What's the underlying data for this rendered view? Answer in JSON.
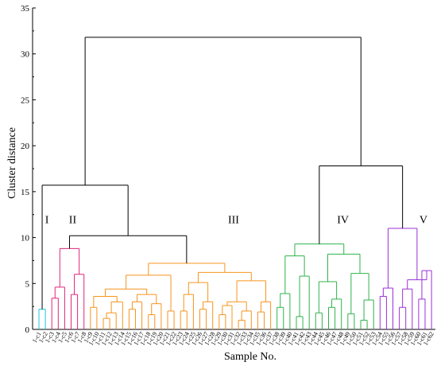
{
  "chart_data": {
    "type": "dendrogram",
    "ylabel": "Cluster distance",
    "xlabel": "Sample No.",
    "ylim": [
      0,
      35
    ],
    "yticks": [
      0,
      5,
      10,
      15,
      20,
      25,
      30,
      35
    ],
    "cluster_labels": [
      {
        "label": "I",
        "x_leaf": 0.5,
        "y": 12
      },
      {
        "label": "II",
        "x_leaf": 4.5,
        "y": 12
      },
      {
        "label": "III",
        "x_leaf": 29.5,
        "y": 12
      },
      {
        "label": "IV",
        "x_leaf": 46.5,
        "y": 12
      },
      {
        "label": "V",
        "x_leaf": 59.0,
        "y": 12
      }
    ],
    "colors": {
      "I": "#22c4e0",
      "II": "#e0257a",
      "III": "#f7941d",
      "IV": "#2db34a",
      "V": "#9b30d9",
      "root": "#000000"
    },
    "leaves": [
      "1-c1",
      "1-c2",
      "1-c3",
      "1-c4",
      "1-c5",
      "1-c6",
      "1-c7",
      "1-c8",
      "1-c9",
      "1-c10",
      "1-c11",
      "1-c12",
      "1-c13",
      "1-c14",
      "1-c15",
      "1-c16",
      "1-c17",
      "1-c18",
      "1-c19",
      "1-c20",
      "1-c21",
      "1-c22",
      "1-c23",
      "1-c24",
      "1-c25",
      "1-c26",
      "1-c27",
      "1-c28",
      "1-c29",
      "1-c30",
      "1-c31",
      "1-c32",
      "1-c33",
      "1-c34",
      "1-c35",
      "1-c36",
      "1-c37",
      "1-c38",
      "1-c39",
      "1-c40",
      "1-c41",
      "1-c42",
      "1-c43",
      "1-c44",
      "1-c45",
      "1-c46",
      "1-c47",
      "1-c48",
      "1-c49",
      "1-c50",
      "1-c51",
      "1-c52",
      "1-c53",
      "1-c54",
      "1-c55",
      "1-c56",
      "1-c57",
      "1-c58",
      "1-c59",
      "1-c60",
      "1-c61",
      "1-c62"
    ],
    "links": [
      {
        "a": 0,
        "b": 1,
        "h": 2.2,
        "c": "I"
      },
      {
        "a": 2,
        "b": 3,
        "h": 3.4,
        "c": "II"
      },
      {
        "a": "n",
        "b": 4,
        "h": 4.6,
        "c": "II"
      },
      {
        "a": 5,
        "b": 6,
        "h": 3.8,
        "c": "II"
      },
      {
        "a": "n",
        "b": 7,
        "h": 6.0,
        "c": "II"
      },
      {
        "a": "n",
        "b": "n",
        "h": 8.8,
        "c": "II"
      }
    ]
  }
}
